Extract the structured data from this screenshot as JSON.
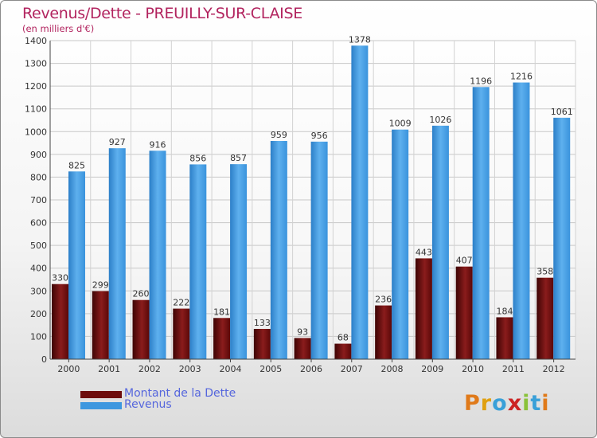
{
  "title": "Revenus/Dette - PREUILLY-SUR-CLAISE",
  "subtitle": "(en milliers d'€)",
  "colors": {
    "title": "#b2245f",
    "dette": "#6e0e0e",
    "revenus": "#3d97df",
    "legend_text": "#5566dd"
  },
  "legend": [
    {
      "label": "Montant de la Dette",
      "color": "#6e0e0e"
    },
    {
      "label": "Revenus",
      "color": "#3d97df"
    }
  ],
  "logo": {
    "text": "Proxiti",
    "letter_colors": [
      "#e07a1a",
      "#e0a010",
      "#3aa0d8",
      "#cc2222",
      "#8ac23a",
      "#3aa0d8",
      "#e07a1a"
    ]
  },
  "chart_data": {
    "type": "bar",
    "title": "Revenus/Dette - PREUILLY-SUR-CLAISE",
    "subtitle": "(en milliers d'€)",
    "categories": [
      "2000",
      "2001",
      "2002",
      "2003",
      "2004",
      "2005",
      "2006",
      "2007",
      "2008",
      "2009",
      "2010",
      "2011",
      "2012"
    ],
    "series": [
      {
        "name": "Montant de la Dette",
        "values": [
          330,
          299,
          260,
          222,
          181,
          133,
          93,
          68,
          236,
          443,
          407,
          184,
          358
        ]
      },
      {
        "name": "Revenus",
        "values": [
          825,
          927,
          916,
          856,
          857,
          959,
          956,
          1378,
          1009,
          1026,
          1196,
          1216,
          1061
        ]
      }
    ],
    "ylim": [
      0,
      1400
    ],
    "yticks": [
      0,
      100,
      200,
      300,
      400,
      500,
      600,
      700,
      800,
      900,
      1000,
      1100,
      1200,
      1300,
      1400
    ],
    "grid": true,
    "legend_position": "bottom-left"
  }
}
